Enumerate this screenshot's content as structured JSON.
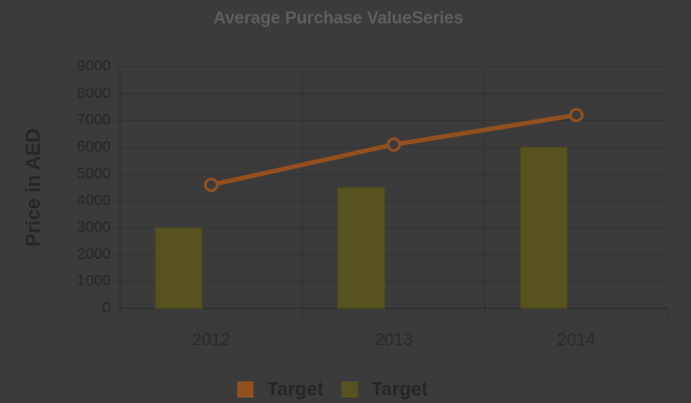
{
  "chart_data": {
    "type": "bar",
    "title": "Average Purchase ValueSeries",
    "y_label": "Price in AED",
    "categories": [
      "2012",
      "2013",
      "2014"
    ],
    "series": [
      {
        "name": "Target",
        "type": "line",
        "color": "#93501f",
        "values": [
          4600,
          6100,
          7200
        ]
      },
      {
        "name": "Target",
        "type": "bar",
        "color": "#57531f",
        "values": [
          3000,
          4500,
          6000
        ]
      }
    ],
    "ylim": [
      0,
      9000
    ],
    "yticks": [
      0,
      1000,
      2000,
      3000,
      4000,
      5000,
      6000,
      7000,
      8000,
      9000
    ],
    "grid": true
  }
}
